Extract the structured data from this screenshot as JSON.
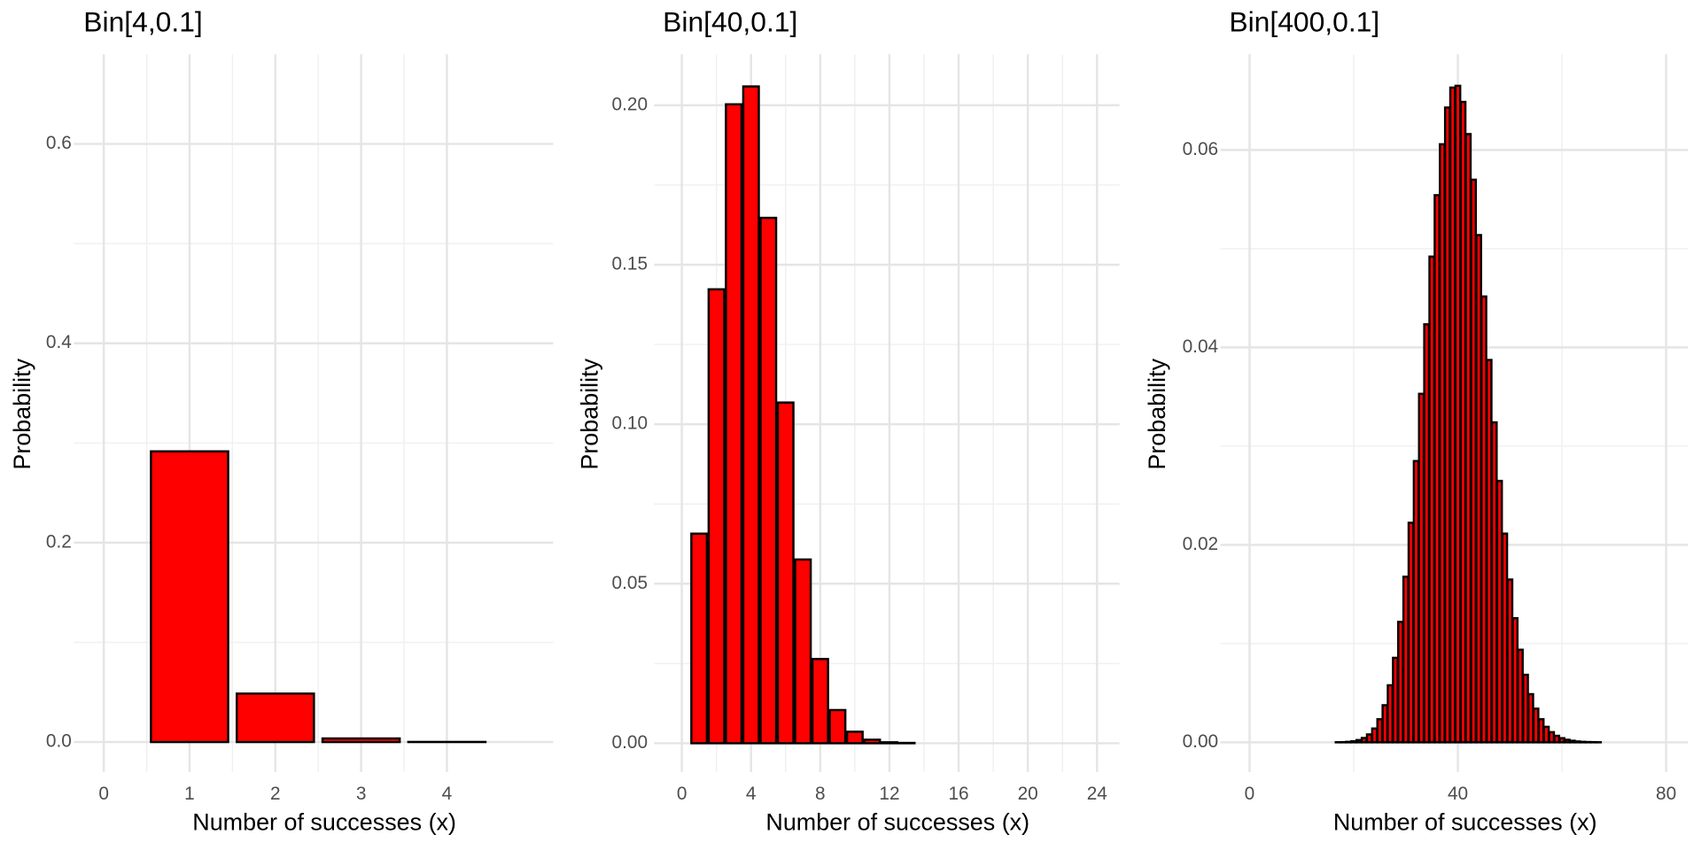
{
  "chart_data": [
    {
      "type": "bar",
      "title": "Bin[4,0.1]",
      "xlabel": "Number of successes (x)",
      "ylabel": "Probability",
      "x": [
        1,
        2,
        3,
        4
      ],
      "values": [
        0.2916,
        0.0486,
        0.0036,
        0.0001
      ],
      "color": "#ff0000",
      "edgecolor": "#000000",
      "grid": true,
      "xlim": [
        -0.35,
        5.24
      ],
      "xticks": [
        0,
        1,
        2,
        3,
        4
      ],
      "ylim": [
        -0.03,
        0.69
      ],
      "yticks": [
        {
          "value": 0,
          "label": "0.0"
        },
        0.2,
        0.4,
        0.6
      ]
    },
    {
      "type": "bar",
      "title": "Bin[40,0.1]",
      "xlabel": "Number of successes (x)",
      "ylabel": "Probability",
      "x": [
        1,
        2,
        3,
        4,
        5,
        6,
        7,
        8,
        9,
        10,
        11,
        12,
        13,
        14,
        15,
        16,
        17,
        18,
        19,
        20,
        21,
        22,
        23
      ],
      "values": [
        0.0657,
        0.1423,
        0.2003,
        0.2059,
        0.1647,
        0.1068,
        0.0576,
        0.0264,
        0.0104,
        0.0036,
        0.0011,
        0.0003,
        0.0001,
        0,
        0,
        0,
        0,
        0,
        0,
        0,
        0,
        0,
        0
      ],
      "color": "#ff0000",
      "edgecolor": "#000000",
      "grid": true,
      "xlim": [
        -1.6,
        25.3
      ],
      "xticks": [
        0,
        4,
        8,
        12,
        16,
        20,
        24
      ],
      "ylim": [
        -0.009,
        0.216
      ],
      "yticks": [
        {
          "value": 0,
          "label": "0.00"
        },
        0.05,
        {
          "value": 0.1,
          "label": "0.10"
        },
        0.15,
        {
          "value": 0.2,
          "label": "0.20"
        }
      ]
    },
    {
      "type": "bar",
      "title": "Bin[400,0.1]",
      "xlabel": "Number of successes (x)",
      "ylabel": "Probability",
      "x": [
        1,
        2,
        3,
        4,
        5,
        6,
        7,
        8,
        9,
        10,
        11,
        12,
        13,
        14,
        15,
        16,
        17,
        18,
        19,
        20,
        21,
        22,
        23,
        24,
        25,
        26,
        27,
        28,
        29,
        30,
        31,
        32,
        33,
        34,
        35,
        36,
        37,
        38,
        39,
        40,
        41,
        42,
        43,
        44,
        45,
        46,
        47,
        48,
        49,
        50,
        51,
        52,
        53,
        54,
        55,
        56,
        57,
        58,
        59,
        60,
        61,
        62,
        63,
        64,
        65,
        66,
        67,
        68,
        69,
        70,
        71,
        72,
        73,
        74,
        75,
        76,
        77,
        78,
        79
      ],
      "values": [
        0,
        0,
        0,
        0,
        0,
        0,
        0,
        0,
        0,
        0,
        0,
        0,
        0,
        0,
        0,
        0,
        1e-05,
        2e-05,
        5e-05,
        0.00011,
        0.00023,
        0.00044,
        0.0008,
        0.0014,
        0.00234,
        0.00376,
        0.00578,
        0.00856,
        0.0122,
        0.01677,
        0.02224,
        0.02849,
        0.0353,
        0.04234,
        0.0492,
        0.05542,
        0.06058,
        0.0643,
        0.06632,
        0.0665,
        0.06487,
        0.06161,
        0.05699,
        0.05138,
        0.04516,
        0.03873,
        0.03241,
        0.02648,
        0.02114,
        0.01649,
        0.01257,
        0.00938,
        0.00684,
        0.00488,
        0.00341,
        0.00234,
        0.00157,
        0.00103,
        0.00066,
        0.00042,
        0.00026,
        0.00016,
        9e-05,
        5e-05,
        3e-05,
        2e-05,
        1e-05,
        0,
        0,
        0,
        0,
        0,
        0,
        0,
        0,
        0,
        0,
        0,
        0
      ],
      "color": "#ff0000",
      "edgecolor": "#000000",
      "grid": true,
      "xlim": [
        -5.6,
        84.2
      ],
      "xticks": [
        0,
        40,
        80
      ],
      "ylim": [
        -0.003,
        0.0697
      ],
      "yticks": [
        {
          "value": 0,
          "label": "0.00"
        },
        0.02,
        0.04,
        0.06
      ]
    }
  ]
}
